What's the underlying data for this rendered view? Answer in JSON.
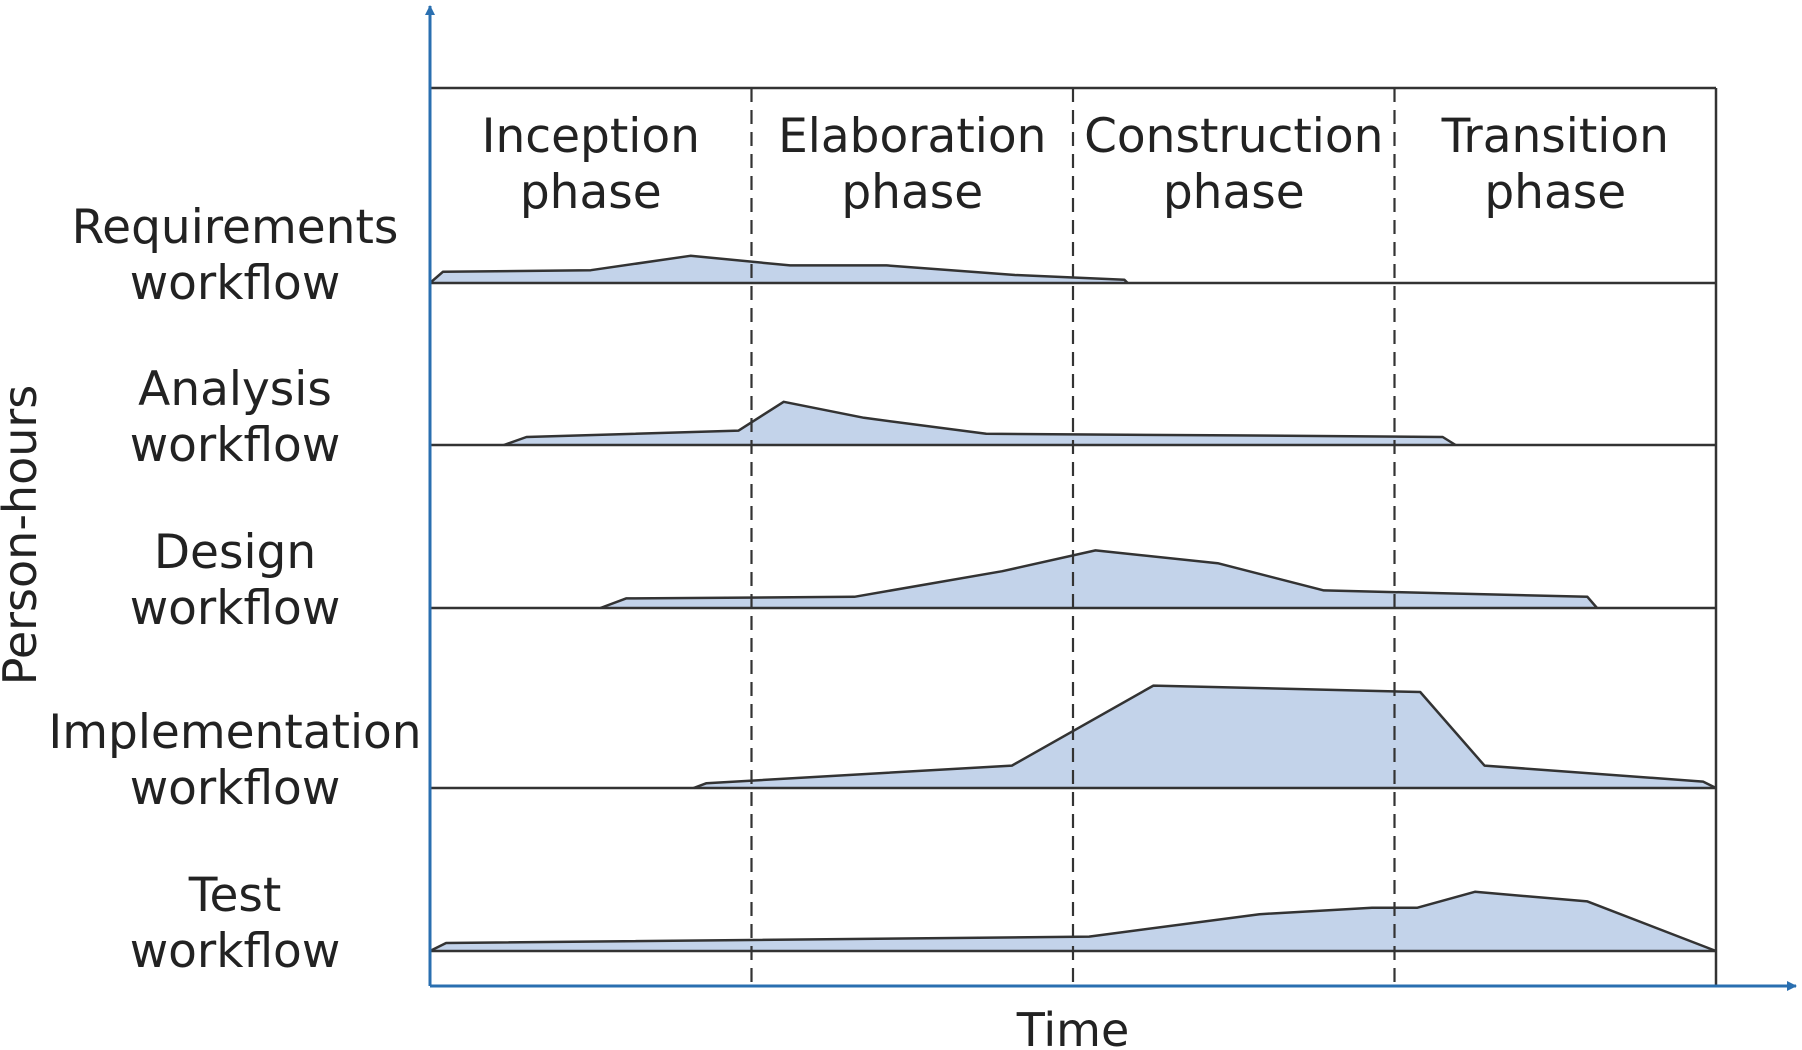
{
  "chart_data": {
    "type": "area",
    "xlabel": "Time",
    "ylabel": "Person-hours",
    "phases": [
      {
        "line1": "Inception",
        "line2": "phase"
      },
      {
        "line1": "Elaboration",
        "line2": "phase"
      },
      {
        "line1": "Construction",
        "line2": "phase"
      },
      {
        "line1": "Transition",
        "line2": "phase"
      }
    ],
    "xlim": [
      0,
      4
    ],
    "ylim": [
      0,
      1
    ],
    "fill_color": "#c3d3ea",
    "line_color": "#333333",
    "axis_color": "#2a6fb0",
    "series": [
      {
        "line1": "Requirements",
        "line2": "workflow",
        "points": [
          [
            0,
            0
          ],
          [
            0.04,
            0.07
          ],
          [
            0.5,
            0.08
          ],
          [
            0.81,
            0.17
          ],
          [
            1.12,
            0.11
          ],
          [
            1.42,
            0.11
          ],
          [
            1.82,
            0.05
          ],
          [
            2.16,
            0.02
          ],
          [
            2.17,
            0
          ]
        ]
      },
      {
        "line1": "Analysis",
        "line2": "workflow",
        "points": [
          [
            0.23,
            0
          ],
          [
            0.3,
            0.05
          ],
          [
            0.96,
            0.09
          ],
          [
            1.1,
            0.27
          ],
          [
            1.35,
            0.17
          ],
          [
            1.73,
            0.07
          ],
          [
            2.5,
            0.06
          ],
          [
            3.15,
            0.05
          ],
          [
            3.19,
            0
          ]
        ]
      },
      {
        "line1": "Design",
        "line2": "workflow",
        "points": [
          [
            0.53,
            0
          ],
          [
            0.61,
            0.06
          ],
          [
            1.32,
            0.07
          ],
          [
            1.78,
            0.23
          ],
          [
            2.07,
            0.36
          ],
          [
            2.45,
            0.28
          ],
          [
            2.78,
            0.11
          ],
          [
            3.6,
            0.07
          ],
          [
            3.63,
            0
          ]
        ]
      },
      {
        "line1": "Implementation",
        "line2": "workflow",
        "points": [
          [
            0.82,
            0
          ],
          [
            0.86,
            0.03
          ],
          [
            1.81,
            0.14
          ],
          [
            2.25,
            0.64
          ],
          [
            3.08,
            0.6
          ],
          [
            3.28,
            0.14
          ],
          [
            3.96,
            0.04
          ],
          [
            4.0,
            0
          ]
        ]
      },
      {
        "line1": "Test",
        "line2": "workflow",
        "points": [
          [
            0,
            0
          ],
          [
            0.05,
            0.05
          ],
          [
            2.05,
            0.09
          ],
          [
            2.58,
            0.23
          ],
          [
            2.93,
            0.27
          ],
          [
            3.07,
            0.27
          ],
          [
            3.25,
            0.37
          ],
          [
            3.6,
            0.31
          ],
          [
            4.0,
            0
          ]
        ]
      }
    ]
  }
}
